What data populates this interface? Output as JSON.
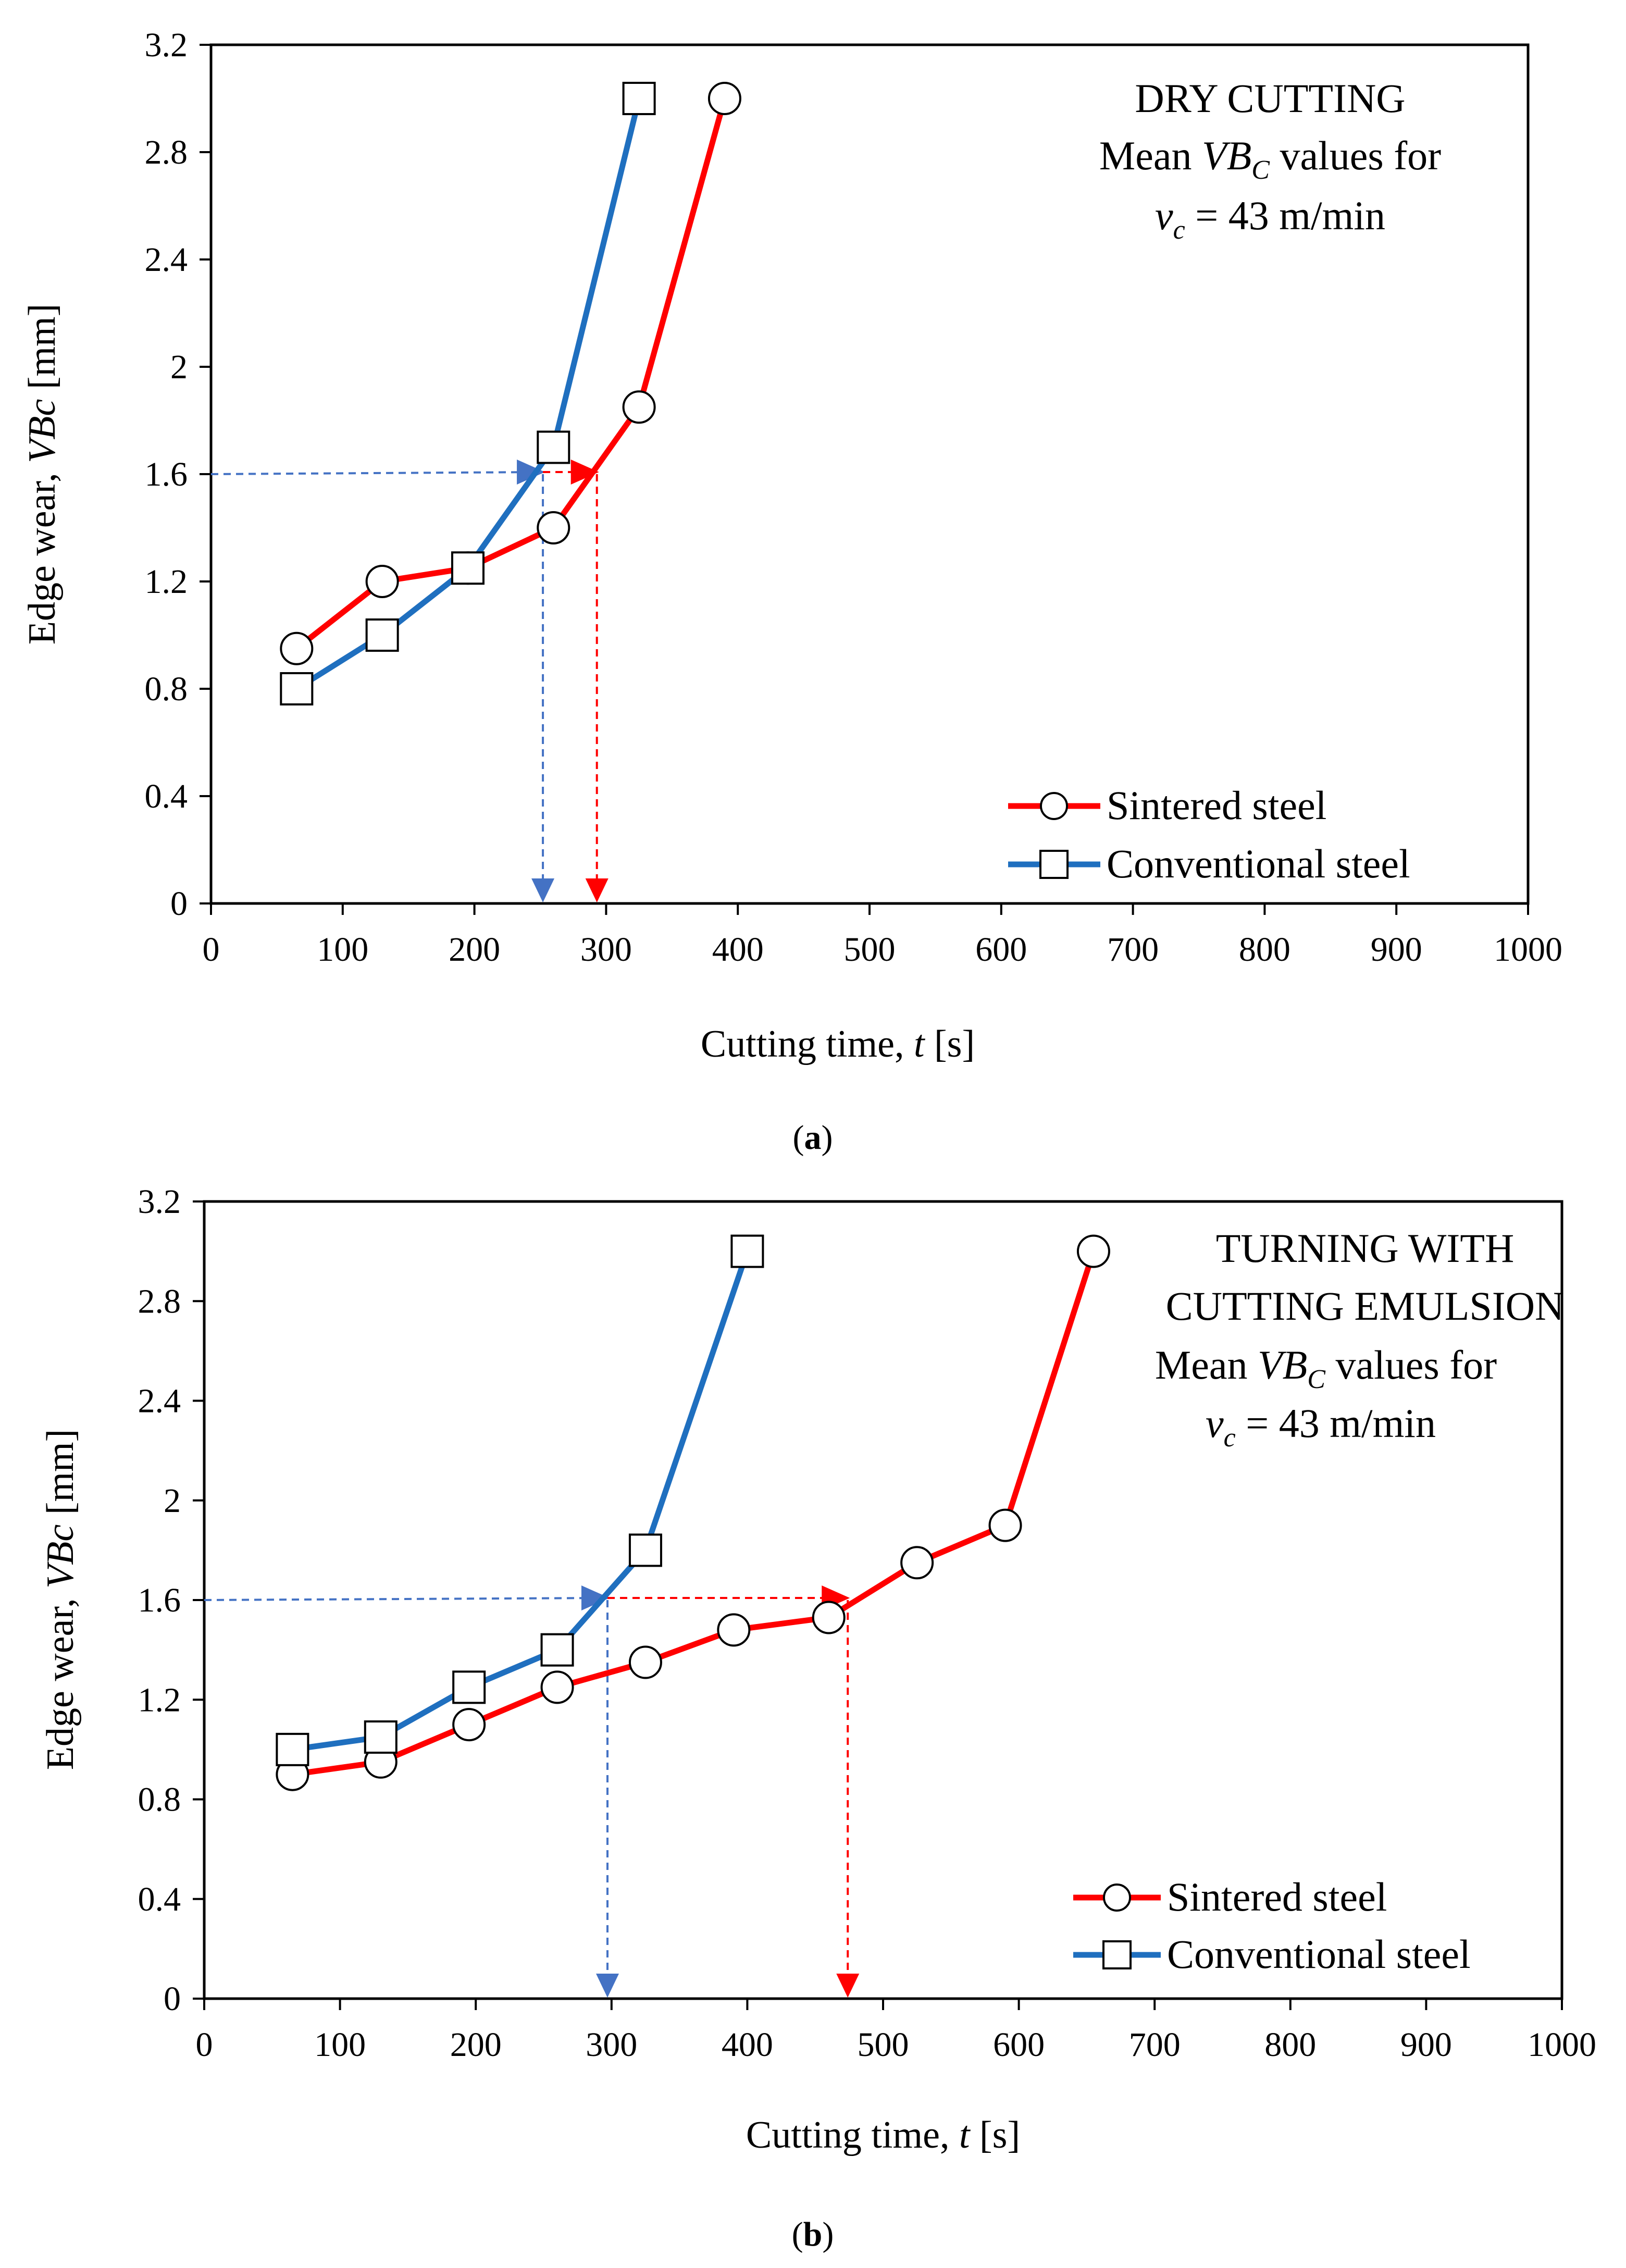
{
  "chart_data": [
    {
      "type": "line",
      "panel": "a",
      "caption_letter": "a",
      "annotation_lines": [
        "DRY  CUTTING",
        "Mean VBC values for",
        "vc = 43 m/min"
      ],
      "annotation": {
        "line1": "DRY  CUTTING",
        "mean_prefix": "Mean ",
        "vb": "VB",
        "vb_sub": "C",
        "mean_suffix": " values for",
        "v": "v",
        "v_sub": "c",
        "v_rest": " = 43 m/min"
      },
      "xlabel": "Cutting  time, t [s]",
      "xlabel_parts": {
        "pre": "Cutting  time, ",
        "it": "t",
        "post": " [s]"
      },
      "ylabel": "Edge  wear,  VBc [mm]",
      "ylabel_parts": {
        "pre": "Edge  wear,  ",
        "it": "VBc",
        "post": " [mm]"
      },
      "xlim": [
        0,
        1000
      ],
      "ylim": [
        0,
        3.2
      ],
      "xticks": [
        "0",
        "100",
        "200",
        "300",
        "400",
        "500",
        "600",
        "700",
        "800",
        "900",
        "1000"
      ],
      "yticks": [
        "0",
        "0.4",
        "0.8",
        "1.2",
        "1.6",
        "2",
        "2.4",
        "2.8",
        "3.2"
      ],
      "legend_position": "bottom-right",
      "series": [
        {
          "name": "Sintered steel",
          "color": "#ff0000",
          "marker": "circle",
          "x": [
            65,
            130,
            195,
            260,
            325,
            390
          ],
          "y": [
            0.95,
            1.2,
            1.25,
            1.4,
            1.85,
            3.0
          ]
        },
        {
          "name": "Conventional steel",
          "color": "#1f6fbf",
          "marker": "square",
          "x": [
            65,
            130,
            195,
            260,
            325
          ],
          "y": [
            0.8,
            1.0,
            1.25,
            1.7,
            3.0
          ]
        }
      ],
      "threshold_y": 1.6,
      "threshold_markers": [
        {
          "series": "Conventional steel",
          "color": "#4472c4",
          "t": 252
        },
        {
          "series": "Sintered steel",
          "color": "#ff0000",
          "t": 293
        }
      ]
    },
    {
      "type": "line",
      "panel": "b",
      "caption_letter": "b",
      "annotation_lines": [
        "TURNING  WITH",
        "CUTTING  EMULSION",
        "Mean VBC  values for",
        "vc = 43 m/min"
      ],
      "annotation": {
        "line1": "TURNING  WITH",
        "line2": "CUTTING  EMULSION",
        "mean_prefix": "Mean ",
        "vb": "VB",
        "vb_sub": "C",
        "mean_suffix": "  values for",
        "v": "v",
        "v_sub": "c",
        "v_rest": " = 43 m/min"
      },
      "xlabel": "Cutting  time, t [s]",
      "xlabel_parts": {
        "pre": "Cutting  time, ",
        "it": "t",
        "post": " [s]"
      },
      "ylabel": "Edge  wear,  VBc [mm]",
      "ylabel_parts": {
        "pre": "Edge  wear,  ",
        "it": "VBc",
        "post": " [mm]"
      },
      "xlim": [
        0,
        1000
      ],
      "ylim": [
        0,
        3.2
      ],
      "xticks": [
        "0",
        "100",
        "200",
        "300",
        "400",
        "500",
        "600",
        "700",
        "800",
        "900",
        "1000"
      ],
      "yticks": [
        "0",
        "0.4",
        "0.8",
        "1.2",
        "1.6",
        "2",
        "2.4",
        "2.8",
        "3.2"
      ],
      "legend_position": "bottom-right",
      "series": [
        {
          "name": "Sintered steel",
          "color": "#ff0000",
          "marker": "circle",
          "x": [
            65,
            130,
            195,
            260,
            325,
            390,
            460,
            525,
            590,
            655
          ],
          "y": [
            0.9,
            0.95,
            1.1,
            1.25,
            1.35,
            1.48,
            1.53,
            1.75,
            1.9,
            3.0
          ]
        },
        {
          "name": "Conventional steel",
          "color": "#1f6fbf",
          "marker": "square",
          "x": [
            65,
            130,
            195,
            260,
            325,
            400
          ],
          "y": [
            1.0,
            1.05,
            1.25,
            1.4,
            1.8,
            3.0
          ]
        }
      ],
      "threshold_y": 1.6,
      "threshold_markers": [
        {
          "series": "Conventional steel",
          "color": "#4472c4",
          "t": 297
        },
        {
          "series": "Sintered steel",
          "color": "#ff0000",
          "t": 474
        }
      ]
    }
  ]
}
